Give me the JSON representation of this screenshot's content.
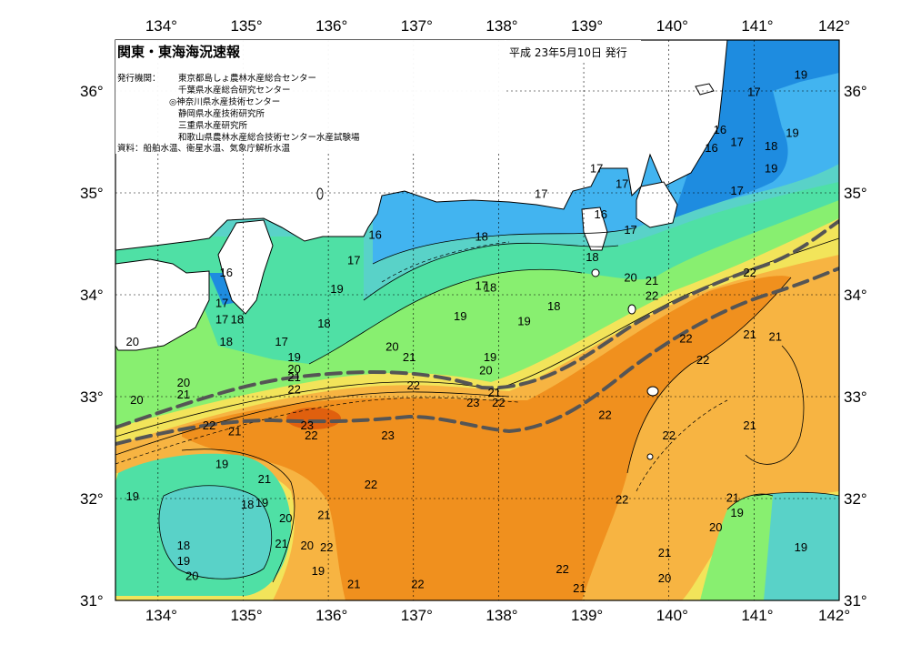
{
  "header": {
    "title": "関東・東海海況速報",
    "date": "平成 23年5月10日 発行"
  },
  "issuers": {
    "label": "発行機関：",
    "lines": [
      "東京都島しょ農林水産総合センター",
      "千葉県水産総合研究センター",
      "◎神奈川県水産技術センター",
      "静岡県水産技術研究所",
      "三重県水産研究所",
      "和歌山県農林水産総合技術センター水産試験場"
    ]
  },
  "source": "資料：船舶水温、衛星水温、気象庁解析水温",
  "axes": {
    "lon_ticks": [
      "134°",
      "135°",
      "136°",
      "137°",
      "138°",
      "139°",
      "140°",
      "141°",
      "142°"
    ],
    "lat_ticks": [
      "36°",
      "35°",
      "34°",
      "33°",
      "32°",
      "31°"
    ]
  },
  "colors": {
    "c16": "#1e8ce0",
    "c17": "#42b4f0",
    "c18": "#59d2c8",
    "c19": "#4fe0a5",
    "c20": "#88ef70",
    "c21": "#f2e45a",
    "c22": "#f7b442",
    "c23": "#f0901e",
    "c24": "#e0600e",
    "land": "#ffffff",
    "kuroshio_axis": "#555555"
  },
  "isotherm_labels": [
    {
      "t": "19",
      "lon": 141.55,
      "lat": 36.12
    },
    {
      "t": "17",
      "lon": 141.0,
      "lat": 35.95
    },
    {
      "t": "16",
      "lon": 140.6,
      "lat": 35.58
    },
    {
      "t": "16",
      "lon": 140.5,
      "lat": 35.4
    },
    {
      "t": "17",
      "lon": 140.8,
      "lat": 35.46
    },
    {
      "t": "19",
      "lon": 141.45,
      "lat": 35.55
    },
    {
      "t": "18",
      "lon": 141.2,
      "lat": 35.42
    },
    {
      "t": "19",
      "lon": 141.2,
      "lat": 35.2
    },
    {
      "t": "17",
      "lon": 140.8,
      "lat": 34.98
    },
    {
      "t": "17",
      "lon": 139.15,
      "lat": 35.2
    },
    {
      "t": "17",
      "lon": 139.45,
      "lat": 35.05
    },
    {
      "t": "17",
      "lon": 138.5,
      "lat": 34.95
    },
    {
      "t": "16",
      "lon": 139.2,
      "lat": 34.75
    },
    {
      "t": "17",
      "lon": 139.55,
      "lat": 34.6
    },
    {
      "t": "16",
      "lon": 136.55,
      "lat": 34.55
    },
    {
      "t": "18",
      "lon": 137.8,
      "lat": 34.53
    },
    {
      "t": "18",
      "lon": 139.1,
      "lat": 34.33
    },
    {
      "t": "17",
      "lon": 136.3,
      "lat": 34.3
    },
    {
      "t": "16",
      "lon": 134.8,
      "lat": 34.18
    },
    {
      "t": "19",
      "lon": 136.1,
      "lat": 34.02
    },
    {
      "t": "17",
      "lon": 137.8,
      "lat": 34.05
    },
    {
      "t": "18",
      "lon": 137.9,
      "lat": 34.03
    },
    {
      "t": "20",
      "lon": 139.55,
      "lat": 34.13
    },
    {
      "t": "21",
      "lon": 139.8,
      "lat": 34.1
    },
    {
      "t": "22",
      "lon": 140.95,
      "lat": 34.18
    },
    {
      "t": "22",
      "lon": 139.8,
      "lat": 33.95
    },
    {
      "t": "17",
      "lon": 134.75,
      "lat": 33.88
    },
    {
      "t": "17",
      "lon": 134.75,
      "lat": 33.72
    },
    {
      "t": "18",
      "lon": 134.93,
      "lat": 33.72
    },
    {
      "t": "18",
      "lon": 138.65,
      "lat": 33.85
    },
    {
      "t": "19",
      "lon": 137.55,
      "lat": 33.75
    },
    {
      "t": "19",
      "lon": 138.3,
      "lat": 33.7
    },
    {
      "t": "18",
      "lon": 135.95,
      "lat": 33.68
    },
    {
      "t": "20",
      "lon": 133.7,
      "lat": 33.5
    },
    {
      "t": "18",
      "lon": 134.8,
      "lat": 33.5
    },
    {
      "t": "17",
      "lon": 135.45,
      "lat": 33.5
    },
    {
      "t": "22",
      "lon": 140.2,
      "lat": 33.53
    },
    {
      "t": "21",
      "lon": 140.95,
      "lat": 33.57
    },
    {
      "t": "21",
      "lon": 141.25,
      "lat": 33.55
    },
    {
      "t": "20",
      "lon": 136.75,
      "lat": 33.45
    },
    {
      "t": "19",
      "lon": 135.6,
      "lat": 33.35
    },
    {
      "t": "21",
      "lon": 136.95,
      "lat": 33.35
    },
    {
      "t": "19",
      "lon": 137.9,
      "lat": 33.35
    },
    {
      "t": "22",
      "lon": 140.4,
      "lat": 33.32
    },
    {
      "t": "20",
      "lon": 135.6,
      "lat": 33.23
    },
    {
      "t": "21",
      "lon": 135.6,
      "lat": 33.15
    },
    {
      "t": "20",
      "lon": 137.85,
      "lat": 33.22
    },
    {
      "t": "20",
      "lon": 134.3,
      "lat": 33.1
    },
    {
      "t": "22",
      "lon": 137.0,
      "lat": 33.07
    },
    {
      "t": "22",
      "lon": 135.6,
      "lat": 33.03
    },
    {
      "t": "21",
      "lon": 134.3,
      "lat": 32.98
    },
    {
      "t": "21",
      "lon": 137.95,
      "lat": 33.0
    },
    {
      "t": "20",
      "lon": 133.75,
      "lat": 32.93
    },
    {
      "t": "23",
      "lon": 137.7,
      "lat": 32.9
    },
    {
      "t": "22",
      "lon": 138.0,
      "lat": 32.9
    },
    {
      "t": "22",
      "lon": 139.25,
      "lat": 32.78
    },
    {
      "t": "22",
      "lon": 134.6,
      "lat": 32.68
    },
    {
      "t": "21",
      "lon": 134.9,
      "lat": 32.62
    },
    {
      "t": "23",
      "lon": 135.75,
      "lat": 32.68
    },
    {
      "t": "22",
      "lon": 135.8,
      "lat": 32.58
    },
    {
      "t": "23",
      "lon": 136.7,
      "lat": 32.58
    },
    {
      "t": "21",
      "lon": 140.95,
      "lat": 32.68
    },
    {
      "t": "22",
      "lon": 140.0,
      "lat": 32.58
    },
    {
      "t": "19",
      "lon": 134.75,
      "lat": 32.3
    },
    {
      "t": "21",
      "lon": 135.25,
      "lat": 32.15
    },
    {
      "t": "22",
      "lon": 136.5,
      "lat": 32.1
    },
    {
      "t": "19",
      "lon": 133.7,
      "lat": 31.98
    },
    {
      "t": "18",
      "lon": 135.05,
      "lat": 31.9
    },
    {
      "t": "19",
      "lon": 135.22,
      "lat": 31.92
    },
    {
      "t": "22",
      "lon": 139.45,
      "lat": 31.95
    },
    {
      "t": "21",
      "lon": 140.75,
      "lat": 31.97
    },
    {
      "t": "21",
      "lon": 135.95,
      "lat": 31.8
    },
    {
      "t": "20",
      "lon": 135.5,
      "lat": 31.77
    },
    {
      "t": "19",
      "lon": 140.8,
      "lat": 31.82
    },
    {
      "t": "20",
      "lon": 140.55,
      "lat": 31.68
    },
    {
      "t": "18",
      "lon": 134.3,
      "lat": 31.5
    },
    {
      "t": "21",
      "lon": 135.45,
      "lat": 31.52
    },
    {
      "t": "20",
      "lon": 135.75,
      "lat": 31.5
    },
    {
      "t": "22",
      "lon": 135.98,
      "lat": 31.48
    },
    {
      "t": "19",
      "lon": 141.55,
      "lat": 31.48
    },
    {
      "t": "19",
      "lon": 134.3,
      "lat": 31.35
    },
    {
      "t": "21",
      "lon": 139.95,
      "lat": 31.43
    },
    {
      "t": "19",
      "lon": 135.88,
      "lat": 31.25
    },
    {
      "t": "20",
      "lon": 134.4,
      "lat": 31.2
    },
    {
      "t": "22",
      "lon": 138.75,
      "lat": 31.27
    },
    {
      "t": "20",
      "lon": 139.95,
      "lat": 31.18
    },
    {
      "t": "21",
      "lon": 136.3,
      "lat": 31.12
    },
    {
      "t": "22",
      "lon": 137.05,
      "lat": 31.12
    },
    {
      "t": "21",
      "lon": 138.95,
      "lat": 31.08
    }
  ]
}
